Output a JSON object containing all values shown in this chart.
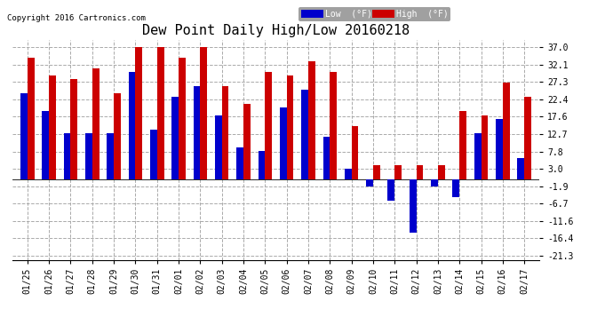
{
  "title": "Dew Point Daily High/Low 20160218",
  "copyright": "Copyright 2016 Cartronics.com",
  "dates": [
    "01/25",
    "01/26",
    "01/27",
    "01/28",
    "01/29",
    "01/30",
    "01/31",
    "02/01",
    "02/02",
    "02/03",
    "02/04",
    "02/05",
    "02/06",
    "02/07",
    "02/08",
    "02/09",
    "02/10",
    "02/11",
    "02/12",
    "02/13",
    "02/14",
    "02/15",
    "02/16",
    "02/17"
  ],
  "low_vals": [
    24,
    19,
    13,
    13,
    13,
    30,
    14,
    23,
    26,
    18,
    9,
    8,
    20,
    25,
    12,
    3,
    -2,
    -6,
    -15,
    -2,
    -5,
    13,
    17,
    6
  ],
  "high_vals": [
    34,
    29,
    28,
    31,
    24,
    37,
    37,
    34,
    37,
    26,
    21,
    30,
    29,
    33,
    30,
    15,
    4,
    4,
    4,
    4,
    19,
    18,
    27,
    23
  ],
  "low_color": "#0000cc",
  "high_color": "#cc0000",
  "bg_color": "#ffffff",
  "plot_bg_color": "#ffffff",
  "grid_color": "#aaaaaa",
  "yticks": [
    -21.3,
    -16.4,
    -11.6,
    -6.7,
    -1.9,
    3.0,
    7.8,
    12.7,
    17.6,
    22.4,
    27.3,
    32.1,
    37.0
  ],
  "ytick_labels": [
    "-21.3",
    "-16.4",
    "-11.6",
    "-6.7",
    "-1.9",
    "3.0",
    "7.8",
    "12.7",
    "17.6",
    "22.4",
    "27.3",
    "32.1",
    "37.0"
  ],
  "ymin": -22.5,
  "ymax": 39.0,
  "bar_width": 0.32,
  "title_fontsize": 11,
  "tick_fontsize": 7
}
